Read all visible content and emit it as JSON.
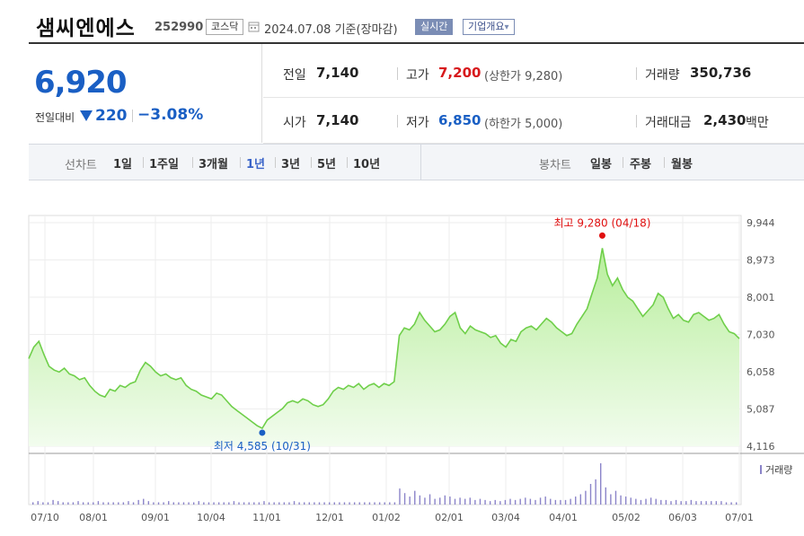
{
  "header": {
    "title": "샘씨엔에스",
    "code": "252990",
    "market": "코스닥",
    "date": "2024.07.08",
    "basis": "기준(장마감)",
    "realtime_label": "실시간",
    "company_label": "기업개요",
    "company_arrow": "▾"
  },
  "price": {
    "current": "6,920",
    "vs_label": "전일대비",
    "change": "220",
    "change_pct": "−3.08%",
    "direction": "down",
    "down_color": "#1a5fc4",
    "up_color": "#d7191c"
  },
  "stats": {
    "prev_close_label": "전일",
    "prev_close": "7,140",
    "open_label": "시가",
    "open": "7,140",
    "high_label": "고가",
    "high": "7,200",
    "upper_limit_label": "(상한가 9,280)",
    "low_label": "저가",
    "low": "6,850",
    "lower_limit_label": "(하한가 5,000)",
    "volume_label": "거래량",
    "volume": "350,736",
    "amount_label": "거래대금",
    "amount": "2,430",
    "amount_unit": "백만"
  },
  "period_bar": {
    "line_label": "선차트",
    "line_periods": [
      "1일",
      "1주일",
      "3개월",
      "1년",
      "3년",
      "5년",
      "10년"
    ],
    "selected": "1년",
    "candle_label": "봉차트",
    "candle_periods": [
      "일봉",
      "주봉",
      "월봉"
    ]
  },
  "chart_data": {
    "type": "area",
    "x_tick_labels": [
      "07/10",
      "08/01",
      "09/01",
      "10/04",
      "11/01",
      "12/01",
      "01/02",
      "02/01",
      "03/04",
      "04/01",
      "05/02",
      "06/03",
      "07/01"
    ],
    "y_tick_labels": [
      "9,944",
      "8,973",
      "8,001",
      "7,030",
      "6,058",
      "5,087",
      "4,116"
    ],
    "ylim": [
      4116,
      9944
    ],
    "grid": true,
    "line_color": "#6fcf4a",
    "fill_color": "#d7f5c8",
    "max_annotation": {
      "label": "최고 9,280 (04/18)",
      "value": 9280,
      "color": "#e01010"
    },
    "min_annotation": {
      "label": "최저 4,585 (10/31)",
      "value": 4585,
      "color": "#1a5fc4"
    },
    "volume_legend": "거래량",
    "price_series": [
      6400,
      6700,
      6850,
      6500,
      6200,
      6100,
      6050,
      6150,
      6000,
      5950,
      5850,
      5900,
      5700,
      5550,
      5450,
      5400,
      5600,
      5550,
      5700,
      5650,
      5750,
      5800,
      6100,
      6300,
      6200,
      6050,
      5950,
      6000,
      5900,
      5850,
      5900,
      5700,
      5600,
      5550,
      5450,
      5400,
      5350,
      5500,
      5450,
      5300,
      5150,
      5050,
      4950,
      4850,
      4750,
      4650,
      4585,
      4800,
      4900,
      5000,
      5100,
      5250,
      5300,
      5250,
      5350,
      5300,
      5200,
      5150,
      5200,
      5350,
      5550,
      5650,
      5600,
      5700,
      5650,
      5750,
      5600,
      5700,
      5750,
      5650,
      5750,
      5700,
      5800,
      7000,
      7200,
      7150,
      7300,
      7600,
      7400,
      7250,
      7100,
      7150,
      7300,
      7500,
      7600,
      7200,
      7050,
      7250,
      7150,
      7100,
      7050,
      6950,
      7000,
      6800,
      6700,
      6900,
      6850,
      7100,
      7200,
      7250,
      7150,
      7300,
      7450,
      7350,
      7200,
      7100,
      7000,
      7050,
      7300,
      7500,
      7700,
      8100,
      8500,
      9280,
      8600,
      8300,
      8500,
      8200,
      8000,
      7900,
      7700,
      7500,
      7650,
      7800,
      8100,
      8000,
      7700,
      7450,
      7550,
      7400,
      7350,
      7550,
      7600,
      7500,
      7400,
      7450,
      7550,
      7300,
      7100,
      7050,
      6920
    ],
    "volume_series": [
      2,
      3,
      2,
      2,
      4,
      3,
      2,
      2,
      2,
      3,
      2,
      2,
      2,
      3,
      2,
      2,
      2,
      2,
      2,
      3,
      2,
      4,
      5,
      3,
      2,
      2,
      2,
      3,
      2,
      2,
      2,
      2,
      2,
      3,
      2,
      2,
      2,
      2,
      2,
      2,
      3,
      2,
      2,
      2,
      2,
      2,
      3,
      2,
      2,
      2,
      2,
      2,
      3,
      2,
      2,
      2,
      2,
      2,
      2,
      2,
      2,
      2,
      2,
      2,
      2,
      2,
      2,
      2,
      2,
      2,
      2,
      2,
      2,
      14,
      10,
      7,
      12,
      8,
      6,
      9,
      5,
      6,
      8,
      7,
      5,
      6,
      5,
      6,
      4,
      5,
      4,
      3,
      4,
      3,
      4,
      5,
      4,
      5,
      6,
      5,
      4,
      6,
      7,
      5,
      4,
      4,
      4,
      5,
      7,
      9,
      12,
      18,
      22,
      36,
      15,
      9,
      12,
      8,
      7,
      6,
      5,
      4,
      5,
      6,
      5,
      4,
      4,
      3,
      4,
      3,
      3,
      4,
      3,
      3,
      3,
      3,
      3,
      3,
      2,
      2,
      2
    ]
  }
}
